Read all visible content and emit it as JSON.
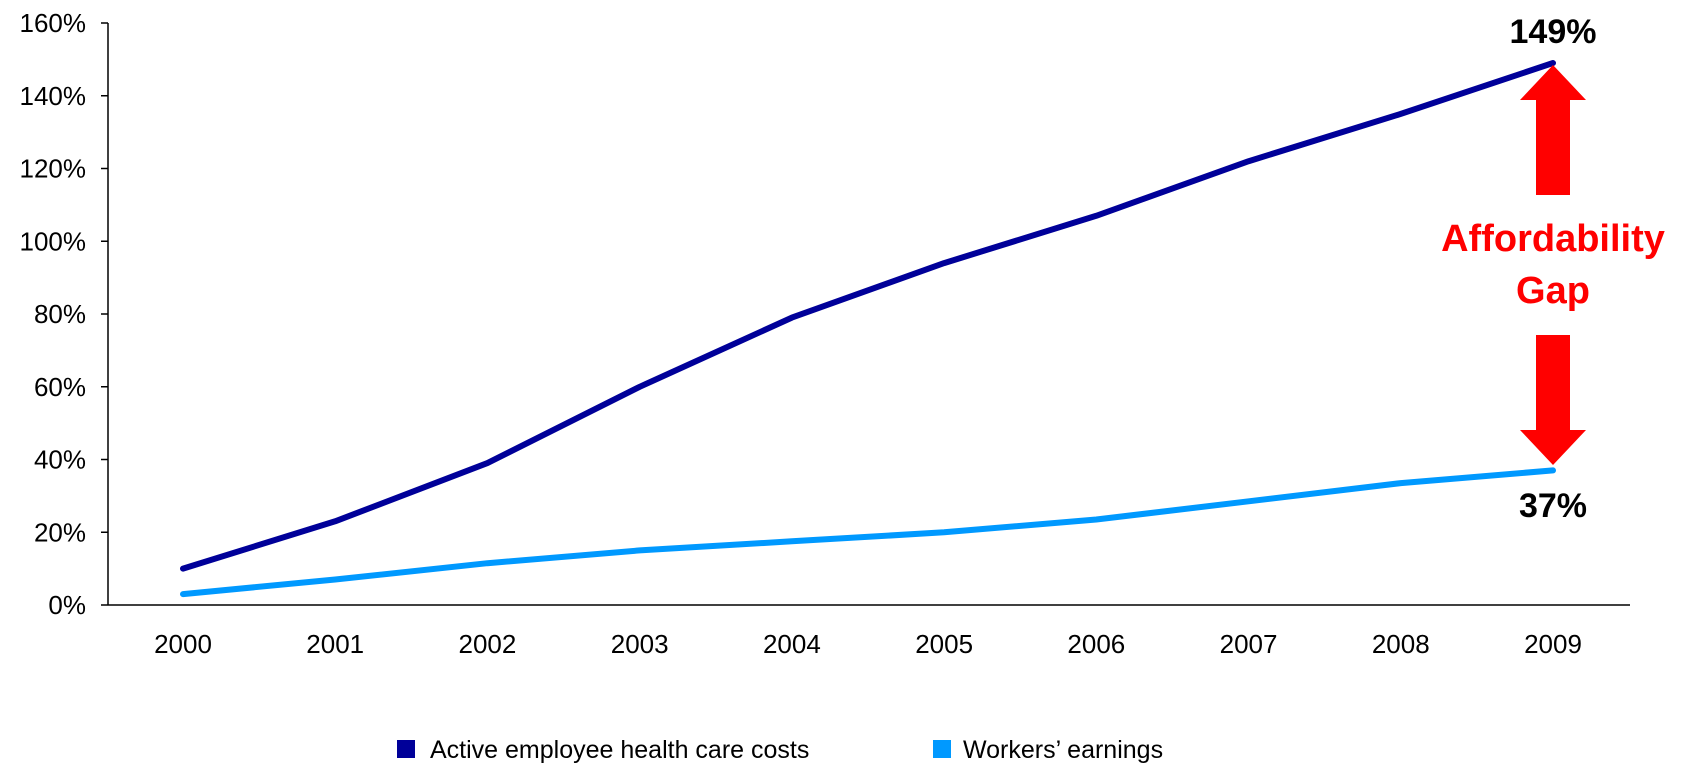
{
  "chart_data": {
    "type": "line",
    "x": [
      "2000",
      "2001",
      "2002",
      "2003",
      "2004",
      "2005",
      "2006",
      "2007",
      "2008",
      "2009"
    ],
    "series": [
      {
        "name": "Active employee health care costs",
        "color": "#000099",
        "values": [
          10,
          23,
          39,
          60,
          79,
          94,
          107,
          122,
          135,
          149
        ]
      },
      {
        "name": "Workers’ earnings",
        "color": "#0099FF",
        "values": [
          3,
          7,
          11.5,
          15,
          17.5,
          20,
          23.5,
          28.5,
          33.5,
          37
        ]
      }
    ],
    "ylim": [
      0,
      160
    ],
    "yticks": [
      "0%",
      "20%",
      "40%",
      "60%",
      "80%",
      "100%",
      "120%",
      "140%",
      "160%"
    ],
    "ytick_values": [
      0,
      20,
      40,
      60,
      80,
      100,
      120,
      140,
      160
    ],
    "annotations": {
      "top_value": "149%",
      "bottom_value": "37%",
      "gap_line1": "Affordability",
      "gap_line2": "Gap",
      "gap_color": "#FF0000"
    },
    "legend_position": "bottom",
    "grid": false
  }
}
